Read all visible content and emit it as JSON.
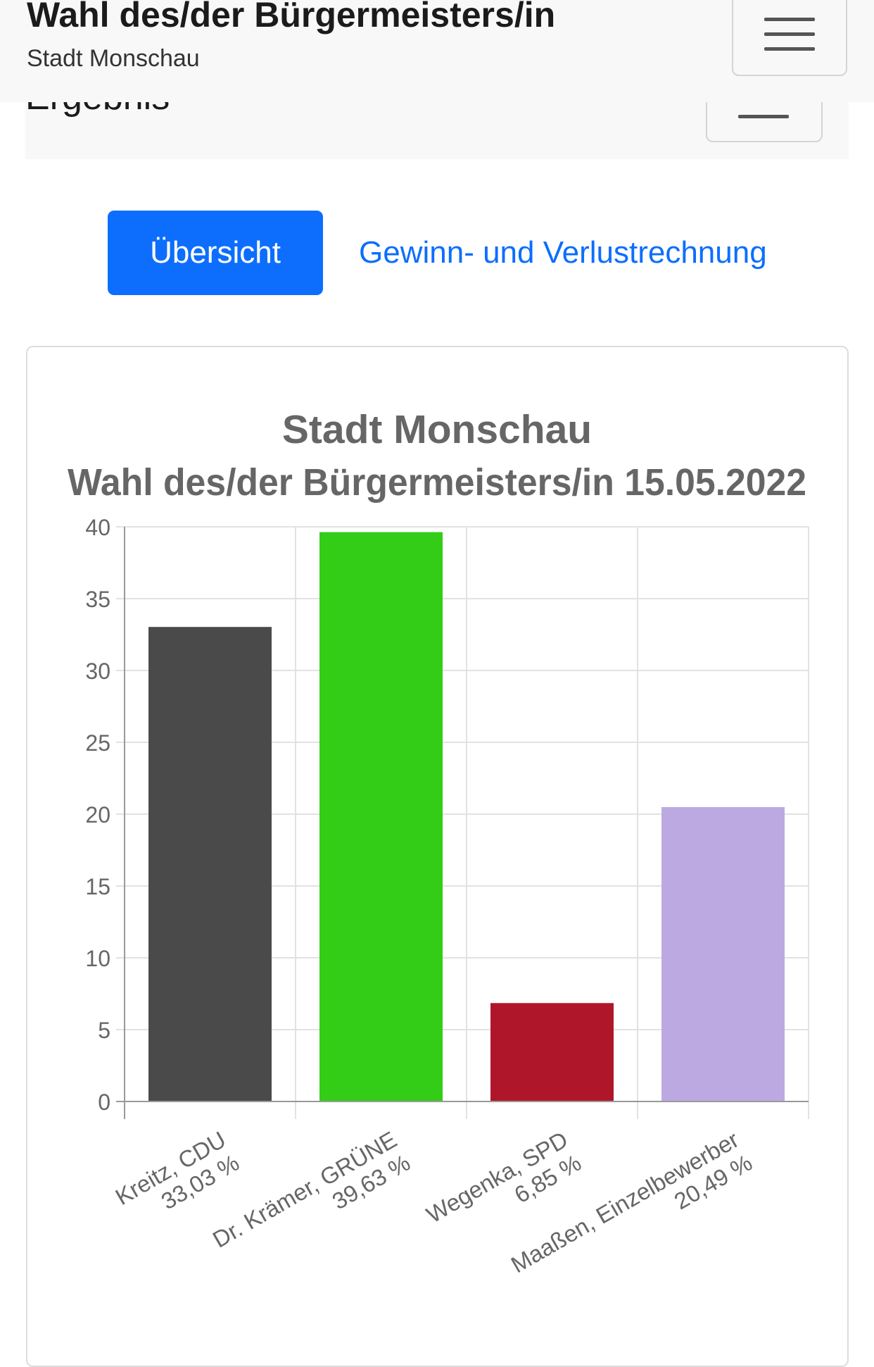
{
  "header": {
    "title": "Wahl des/der Bürgermeisters/in",
    "subtitle": "Stadt Monschau",
    "menu_icon": "hamburger-icon"
  },
  "section": {
    "title": "Ergebnis",
    "menu_icon": "hamburger-icon"
  },
  "tabs": {
    "overview": "Übersicht",
    "profit_loss": "Gewinn- und Verlustrechnung"
  },
  "colors": {
    "accent": "#0d6efd"
  },
  "chart_data": {
    "type": "bar",
    "title": "Stadt Monschau",
    "subtitle": "Wahl des/der Bürgermeisters/in 15.05.2022",
    "categories": [
      [
        "Kreitz, CDU",
        "33,03 %"
      ],
      [
        "Dr. Krämer, GRÜNE",
        "39,63 %"
      ],
      [
        "Wegenka, SPD",
        "6,85 %"
      ],
      [
        "Maaßen, Einzelbewerber",
        "20,49 %"
      ]
    ],
    "values": [
      33.03,
      39.63,
      6.85,
      20.49
    ],
    "colors": [
      "#4a4a4a",
      "#33cc17",
      "#b01629",
      "#bca9e1"
    ],
    "ylim": [
      0,
      40
    ],
    "yticks": [
      "0",
      "5",
      "10",
      "15",
      "20",
      "25",
      "30",
      "35",
      "40"
    ],
    "grid": true,
    "legend": "none"
  }
}
